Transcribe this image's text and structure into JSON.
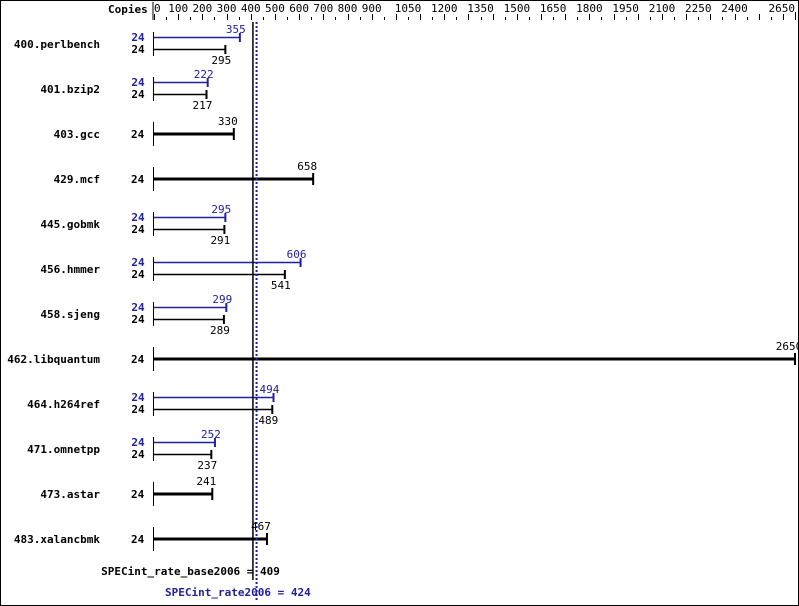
{
  "chart_data": {
    "type": "bar",
    "orientation": "horizontal",
    "xlabel": "Copies",
    "xlim": [
      0,
      2650
    ],
    "ticks": [
      0,
      100,
      200,
      300,
      400,
      500,
      600,
      700,
      800,
      900,
      1050,
      1200,
      1350,
      1500,
      1650,
      1800,
      1950,
      2100,
      2250,
      2400,
      2650
    ],
    "colors": {
      "base": "#000000",
      "peak": "#2020a0"
    },
    "benchmarks": [
      {
        "name": "400.perlbench",
        "peak_copies": "24",
        "peak": 355,
        "base_copies": "24",
        "base": 295
      },
      {
        "name": "401.bzip2",
        "peak_copies": "24",
        "peak": 222,
        "base_copies": "24",
        "base": 217
      },
      {
        "name": "403.gcc",
        "base_copies": "24",
        "base": 330
      },
      {
        "name": "429.mcf",
        "base_copies": "24",
        "base": 658
      },
      {
        "name": "445.gobmk",
        "peak_copies": "24",
        "peak": 295,
        "base_copies": "24",
        "base": 291
      },
      {
        "name": "456.hmmer",
        "peak_copies": "24",
        "peak": 606,
        "base_copies": "24",
        "base": 541
      },
      {
        "name": "458.sjeng",
        "peak_copies": "24",
        "peak": 299,
        "base_copies": "24",
        "base": 289
      },
      {
        "name": "462.libquantum",
        "base_copies": "24",
        "base": 2650
      },
      {
        "name": "464.h264ref",
        "peak_copies": "24",
        "peak": 494,
        "base_copies": "24",
        "base": 489
      },
      {
        "name": "471.omnetpp",
        "peak_copies": "24",
        "peak": 252,
        "base_copies": "24",
        "base": 237
      },
      {
        "name": "473.astar",
        "base_copies": "24",
        "base": 241
      },
      {
        "name": "483.xalancbmk",
        "base_copies": "24",
        "base": 467
      }
    ],
    "base_summary": {
      "label": "SPECint_rate_base2006 = 409",
      "value": 409
    },
    "peak_summary": {
      "label": "SPECint_rate2006 = 424",
      "value": 424
    }
  }
}
